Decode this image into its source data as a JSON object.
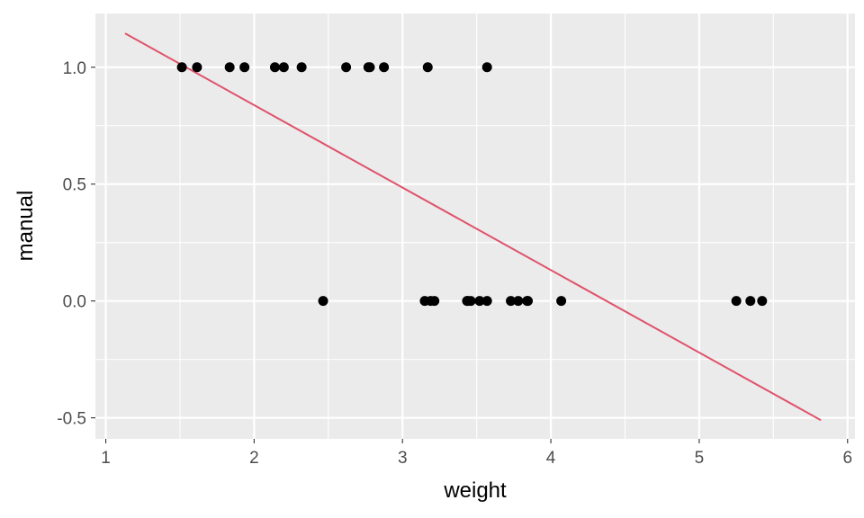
{
  "chart_data": {
    "type": "scatter",
    "title": "",
    "xlabel": "weight",
    "ylabel": "manual",
    "xlim": [
      0.93,
      6.05
    ],
    "ylim": [
      -0.59,
      1.23
    ],
    "x_ticks": [
      1,
      2,
      3,
      4,
      5,
      6
    ],
    "x_tick_labels": [
      "1",
      "2",
      "3",
      "4",
      "5",
      "6"
    ],
    "y_ticks": [
      -0.5,
      0,
      0.5,
      1
    ],
    "y_tick_labels": [
      "-0.5",
      "0.0",
      "0.5",
      "1.0"
    ],
    "grid": true,
    "legend": "none",
    "points": [
      {
        "x": 1.513,
        "y": 1
      },
      {
        "x": 1.615,
        "y": 1
      },
      {
        "x": 1.835,
        "y": 1
      },
      {
        "x": 1.935,
        "y": 1
      },
      {
        "x": 2.14,
        "y": 1
      },
      {
        "x": 2.2,
        "y": 1
      },
      {
        "x": 2.32,
        "y": 1
      },
      {
        "x": 2.62,
        "y": 1
      },
      {
        "x": 2.77,
        "y": 1
      },
      {
        "x": 2.78,
        "y": 1
      },
      {
        "x": 2.875,
        "y": 1
      },
      {
        "x": 3.17,
        "y": 1
      },
      {
        "x": 3.57,
        "y": 1
      },
      {
        "x": 2.465,
        "y": 0
      },
      {
        "x": 3.15,
        "y": 0
      },
      {
        "x": 3.19,
        "y": 0
      },
      {
        "x": 3.215,
        "y": 0
      },
      {
        "x": 3.435,
        "y": 0
      },
      {
        "x": 3.44,
        "y": 0
      },
      {
        "x": 3.46,
        "y": 0
      },
      {
        "x": 3.52,
        "y": 0
      },
      {
        "x": 3.57,
        "y": 0
      },
      {
        "x": 3.73,
        "y": 0
      },
      {
        "x": 3.78,
        "y": 0
      },
      {
        "x": 3.84,
        "y": 0
      },
      {
        "x": 3.845,
        "y": 0
      },
      {
        "x": 4.07,
        "y": 0
      },
      {
        "x": 5.25,
        "y": 0
      },
      {
        "x": 5.345,
        "y": 0
      },
      {
        "x": 5.424,
        "y": 0
      }
    ],
    "fit_line": {
      "x": [
        1.13,
        5.82
      ],
      "y": [
        1.145,
        -0.51
      ]
    },
    "colors": {
      "panel_bg": "#ebebeb",
      "grid": "#ffffff",
      "points": "#000000",
      "fit_line": "#df536b",
      "tick_mark": "#333333"
    }
  }
}
